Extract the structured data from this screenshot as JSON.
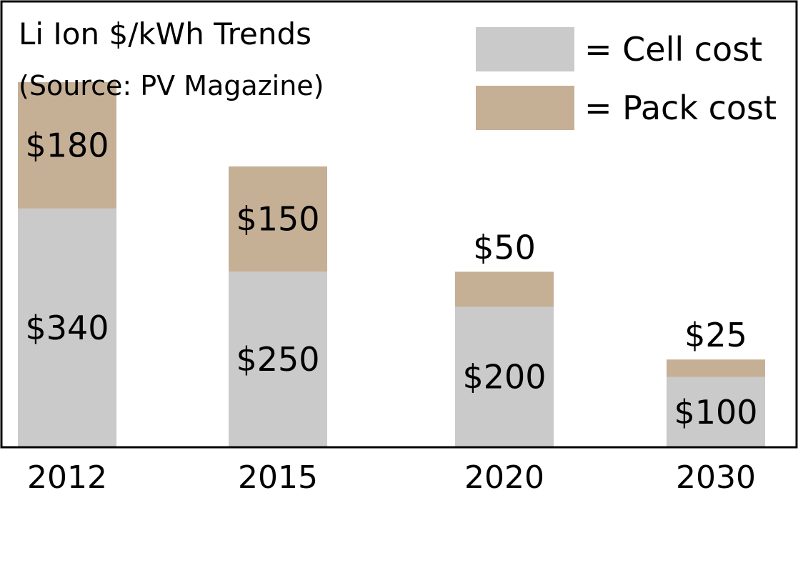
{
  "chart_data": {
    "type": "bar",
    "stacked": true,
    "title": "Li Ion $/kWh Trends",
    "subtitle": "(Source: PV Magazine)",
    "categories": [
      "2012",
      "2015",
      "2020",
      "2030"
    ],
    "series": [
      {
        "name": "= Cell cost",
        "values": [
          340,
          250,
          200,
          100
        ],
        "labels": [
          "$340",
          "$250",
          "$200",
          "$100"
        ],
        "color": "#cacaca"
      },
      {
        "name": "= Pack cost",
        "values": [
          180,
          150,
          50,
          25
        ],
        "labels": [
          "$180",
          "$150",
          "$50",
          "$25"
        ],
        "color": "#c5b096"
      }
    ],
    "ylim": [
      0,
      635
    ],
    "grid": false,
    "legend": "top-right"
  }
}
